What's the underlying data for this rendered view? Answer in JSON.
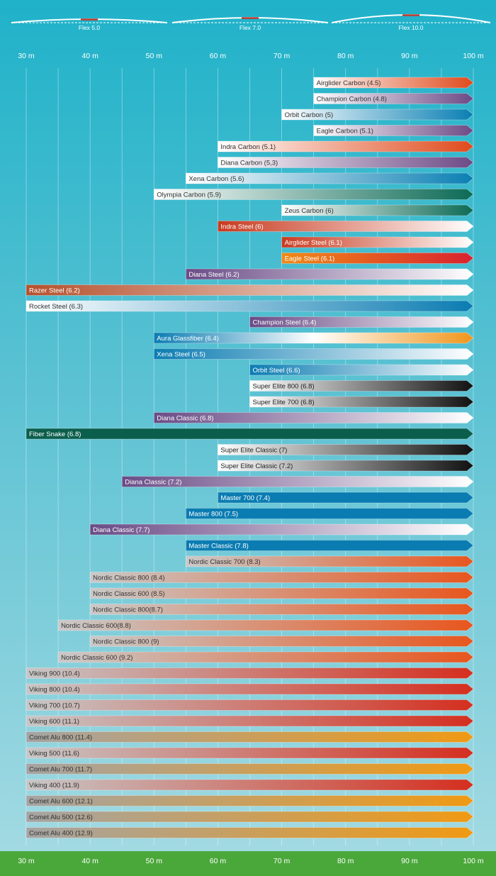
{
  "flex_legend": [
    {
      "label": "Flex 5.0"
    },
    {
      "label": "Flex 7.0"
    },
    {
      "label": "Flex 10.0"
    }
  ],
  "chart_data": {
    "type": "bar",
    "orientation": "horizontal",
    "axis_unit": "m",
    "x_ticks": [
      30,
      40,
      50,
      60,
      70,
      80,
      90,
      100
    ],
    "x_tick_labels": [
      "30 m",
      "40 m",
      "50 m",
      "60 m",
      "70 m",
      "80 m",
      "90 m",
      "100 m"
    ],
    "xlim": [
      30,
      100
    ],
    "grid": "vertical lines every 5 m",
    "color_styles": {
      "orange_fade": [
        "#ffffff",
        "#e04a1c"
      ],
      "purple_fade": [
        "#ffffff",
        "#6d4a86"
      ],
      "blue_fade": [
        "#ffffff",
        "#0a7fb3"
      ],
      "green_fade": [
        "#ffffff",
        "#0c6a55"
      ],
      "red_to_white": [
        "#c83a1f",
        "#ffffff"
      ],
      "orange_to_red": [
        "#f08a16",
        "#d8222f"
      ],
      "purple_to_white": [
        "#6a4b86",
        "#ffffff"
      ],
      "brown_to_white": [
        "#b5502c",
        "#ffffff"
      ],
      "white_to_blue": [
        "#ffffff",
        "#0b7cb2"
      ],
      "blue_to_white": [
        "#0b7cb2",
        "#ffffff"
      ],
      "blue_white_orange": [
        "#0b7cb2",
        "#ffffff",
        "#f0951b"
      ],
      "white_to_black": [
        "#ffffff",
        "#111111"
      ],
      "dark_green_solid": [
        "#0b5e4c",
        "#0b5e4c"
      ],
      "blue_solid": [
        "#0b7cb2",
        "#0b7cb2"
      ],
      "gray_to_orange": [
        "#c9c9c9",
        "#e8561e"
      ],
      "gray_to_red": [
        "#c7c7c7",
        "#d42f1f"
      ],
      "darkgray_to_amber": [
        "#a4a4a4",
        "#f09a14"
      ]
    },
    "bars": [
      {
        "label": "Airglider Carbon (4.5)",
        "start": 75,
        "end": 100,
        "style": "orange_fade",
        "text_color": "#333333"
      },
      {
        "label": "Champion Carbon (4.8)",
        "start": 75,
        "end": 100,
        "style": "purple_fade",
        "text_color": "#333333"
      },
      {
        "label": "Orbit Carbon (5)",
        "start": 70,
        "end": 100,
        "style": "blue_fade",
        "text_color": "#333333"
      },
      {
        "label": "Eagle Carbon (5.1)",
        "start": 75,
        "end": 100,
        "style": "purple_fade",
        "text_color": "#333333"
      },
      {
        "label": "Indra Carbon (5.1)",
        "start": 60,
        "end": 100,
        "style": "orange_fade",
        "text_color": "#333333"
      },
      {
        "label": "Diana Carbon (5,3)",
        "start": 60,
        "end": 100,
        "style": "purple_fade",
        "text_color": "#333333"
      },
      {
        "label": "Xena Carbon (5.6)",
        "start": 55,
        "end": 100,
        "style": "blue_fade",
        "text_color": "#333333"
      },
      {
        "label": "Olympia Carbon (5.9)",
        "start": 50,
        "end": 100,
        "style": "green_fade",
        "text_color": "#333333"
      },
      {
        "label": "Zeus Carbon (6)",
        "start": 70,
        "end": 100,
        "style": "green_fade",
        "text_color": "#333333"
      },
      {
        "label": "Indra Steel (6)",
        "start": 60,
        "end": 100,
        "style": "red_to_white",
        "text_color": "#ffffff"
      },
      {
        "label": "Airglider Steel (6.1)",
        "start": 70,
        "end": 100,
        "style": "red_to_white",
        "text_color": "#ffffff"
      },
      {
        "label": "Eagle Steel (6.1)",
        "start": 70,
        "end": 100,
        "style": "orange_to_red",
        "text_color": "#ffffff"
      },
      {
        "label": "Diana Steel (6.2)",
        "start": 55,
        "end": 100,
        "style": "purple_to_white",
        "text_color": "#ffffff"
      },
      {
        "label": "Razer Steel (6.2)",
        "start": 30,
        "end": 100,
        "style": "brown_to_white",
        "text_color": "#ffffff"
      },
      {
        "label": "Rocket Steel (6.3)",
        "start": 30,
        "end": 100,
        "style": "white_to_blue",
        "text_color": "#333333"
      },
      {
        "label": "Champion Steel (6.4)",
        "start": 65,
        "end": 100,
        "style": "purple_to_white",
        "text_color": "#ffffff"
      },
      {
        "label": "Aura Glassfiber (6.4)",
        "start": 50,
        "end": 100,
        "style": "blue_white_orange",
        "text_color": "#ffffff"
      },
      {
        "label": "Xena Steel (6.5)",
        "start": 50,
        "end": 100,
        "style": "blue_to_white",
        "text_color": "#ffffff"
      },
      {
        "label": "Orbit Steel (6.6)",
        "start": 65,
        "end": 100,
        "style": "blue_to_white",
        "text_color": "#ffffff"
      },
      {
        "label": "Super Elite 800 (6.8)",
        "start": 65,
        "end": 100,
        "style": "white_to_black",
        "text_color": "#222222"
      },
      {
        "label": "Super Elite 700 (6.8)",
        "start": 65,
        "end": 100,
        "style": "white_to_black",
        "text_color": "#222222"
      },
      {
        "label": "Diana Classic (6.8)",
        "start": 50,
        "end": 100,
        "style": "purple_to_white",
        "text_color": "#ffffff"
      },
      {
        "label": "Fiber Snake (6.8)",
        "start": 30,
        "end": 100,
        "style": "dark_green_solid",
        "text_color": "#ffffff"
      },
      {
        "label": "Super Elite Classic (7)",
        "start": 60,
        "end": 100,
        "style": "white_to_black",
        "text_color": "#222222"
      },
      {
        "label": "Super Elite Classic (7.2)",
        "start": 60,
        "end": 100,
        "style": "white_to_black",
        "text_color": "#222222"
      },
      {
        "label": "Diana Classic (7.2)",
        "start": 45,
        "end": 100,
        "style": "purple_to_white",
        "text_color": "#ffffff"
      },
      {
        "label": "Master 700 (7.4)",
        "start": 60,
        "end": 100,
        "style": "blue_solid",
        "text_color": "#ffffff"
      },
      {
        "label": "Master 800 (7.5)",
        "start": 55,
        "end": 100,
        "style": "blue_solid",
        "text_color": "#ffffff"
      },
      {
        "label": "Diana Classic (7.7)",
        "start": 40,
        "end": 100,
        "style": "purple_to_white",
        "text_color": "#ffffff"
      },
      {
        "label": "Master Classic (7.8)",
        "start": 55,
        "end": 100,
        "style": "blue_solid",
        "text_color": "#ffffff"
      },
      {
        "label": "Nordic Classic 700 (8.3)",
        "start": 55,
        "end": 100,
        "style": "gray_to_orange",
        "text_color": "#333333"
      },
      {
        "label": "Nordic Classic 800 (8.4)",
        "start": 40,
        "end": 100,
        "style": "gray_to_orange",
        "text_color": "#333333"
      },
      {
        "label": "Nordic Classic 600 (8.5)",
        "start": 40,
        "end": 100,
        "style": "gray_to_orange",
        "text_color": "#333333"
      },
      {
        "label": "Nordic Classic 800(8.7)",
        "start": 40,
        "end": 100,
        "style": "gray_to_orange",
        "text_color": "#333333"
      },
      {
        "label": "Nordic Classic 600(8.8)",
        "start": 35,
        "end": 100,
        "style": "gray_to_orange",
        "text_color": "#333333"
      },
      {
        "label": "Nordic Classic 800 (9)",
        "start": 40,
        "end": 100,
        "style": "gray_to_orange",
        "text_color": "#333333"
      },
      {
        "label": "Nordic Classic 600 (9.2)",
        "start": 35,
        "end": 100,
        "style": "gray_to_orange",
        "text_color": "#333333"
      },
      {
        "label": "Viking 900 (10.4)",
        "start": 30,
        "end": 100,
        "style": "gray_to_red",
        "text_color": "#333333"
      },
      {
        "label": "Viking 800 (10.4)",
        "start": 30,
        "end": 100,
        "style": "gray_to_red",
        "text_color": "#333333"
      },
      {
        "label": "Viking 700 (10.7)",
        "start": 30,
        "end": 100,
        "style": "gray_to_red",
        "text_color": "#333333"
      },
      {
        "label": "Viking 600 (11.1)",
        "start": 30,
        "end": 100,
        "style": "gray_to_red",
        "text_color": "#333333"
      },
      {
        "label": "Comet Alu 800 (11.4)",
        "start": 30,
        "end": 100,
        "style": "darkgray_to_amber",
        "text_color": "#333333"
      },
      {
        "label": "Viking 500 (11.6)",
        "start": 30,
        "end": 100,
        "style": "gray_to_red",
        "text_color": "#333333"
      },
      {
        "label": "Comet Alu 700 (11.7)",
        "start": 30,
        "end": 100,
        "style": "darkgray_to_amber",
        "text_color": "#333333"
      },
      {
        "label": "Viking 400 (11.9)",
        "start": 30,
        "end": 100,
        "style": "gray_to_red",
        "text_color": "#333333"
      },
      {
        "label": "Comet Alu 600 (12.1)",
        "start": 30,
        "end": 100,
        "style": "darkgray_to_amber",
        "text_color": "#333333"
      },
      {
        "label": "Comet Alu 500 (12.6)",
        "start": 30,
        "end": 100,
        "style": "darkgray_to_amber",
        "text_color": "#333333"
      },
      {
        "label": "Comet Alu 400 (12.9)",
        "start": 30,
        "end": 100,
        "style": "darkgray_to_amber",
        "text_color": "#333333"
      }
    ]
  }
}
